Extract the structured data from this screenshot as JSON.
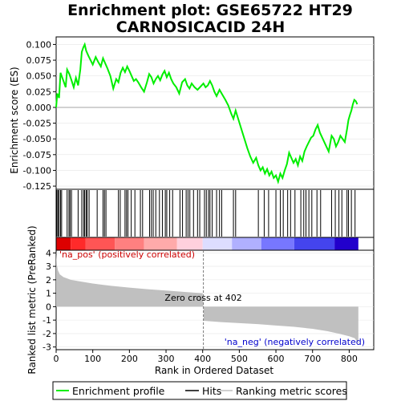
{
  "chart_data": {
    "type": "line",
    "title_line1": "Enrichment plot: GSE65722 HT29",
    "title_line2": "CARNOSICACID 24H",
    "top_panel": {
      "ylabel": "Enrichment score (ES)",
      "ylim": [
        -0.13,
        0.112
      ],
      "yticks": [
        0.1,
        0.075,
        0.05,
        0.025,
        0.0,
        -0.025,
        -0.05,
        -0.075,
        -0.1,
        -0.125
      ],
      "ytick_labels": [
        "0.100",
        "0.075",
        "0.050",
        "0.025",
        "0.000",
        "-0.025",
        "-0.050",
        "-0.075",
        "-0.100",
        "-0.125"
      ],
      "line_color": "#00ee00",
      "x": [
        0,
        3,
        8,
        12,
        15,
        20,
        26,
        30,
        36,
        42,
        48,
        54,
        60,
        66,
        70,
        74,
        78,
        82,
        88,
        94,
        100,
        108,
        115,
        122,
        128,
        134,
        140,
        148,
        156,
        164,
        170,
        176,
        182,
        188,
        194,
        200,
        206,
        212,
        218,
        224,
        232,
        240,
        248,
        254,
        260,
        266,
        272,
        278,
        284,
        290,
        296,
        302,
        308,
        314,
        320,
        328,
        336,
        344,
        352,
        358,
        364,
        370,
        378,
        386,
        394,
        402,
        408,
        414,
        420,
        426,
        432,
        438,
        446,
        454,
        462,
        470,
        478,
        484,
        490,
        498,
        506,
        514,
        522,
        530,
        538,
        546,
        552,
        558,
        564,
        570,
        576,
        582,
        588,
        594,
        600,
        606,
        612,
        618,
        624,
        630,
        636,
        642,
        648,
        654,
        660,
        666,
        672,
        678,
        684,
        690,
        696,
        702,
        708,
        714,
        720,
        728,
        736,
        744,
        752,
        758,
        764,
        770,
        776,
        782,
        788,
        794,
        798,
        802,
        806,
        810,
        814,
        818,
        822
      ],
      "y": [
        0.0,
        0.022,
        0.015,
        0.055,
        0.05,
        0.042,
        0.032,
        0.06,
        0.053,
        0.043,
        0.032,
        0.047,
        0.035,
        0.06,
        0.088,
        0.095,
        0.1,
        0.09,
        0.082,
        0.075,
        0.068,
        0.08,
        0.072,
        0.065,
        0.078,
        0.07,
        0.062,
        0.05,
        0.03,
        0.045,
        0.04,
        0.055,
        0.063,
        0.056,
        0.065,
        0.058,
        0.05,
        0.042,
        0.045,
        0.04,
        0.032,
        0.025,
        0.04,
        0.053,
        0.048,
        0.038,
        0.045,
        0.05,
        0.043,
        0.052,
        0.058,
        0.048,
        0.055,
        0.045,
        0.038,
        0.032,
        0.022,
        0.04,
        0.045,
        0.035,
        0.03,
        0.038,
        0.032,
        0.028,
        0.033,
        0.038,
        0.032,
        0.035,
        0.042,
        0.035,
        0.025,
        0.018,
        0.028,
        0.02,
        0.012,
        0.003,
        -0.01,
        -0.018,
        -0.005,
        -0.02,
        -0.035,
        -0.05,
        -0.065,
        -0.078,
        -0.088,
        -0.08,
        -0.092,
        -0.1,
        -0.095,
        -0.105,
        -0.098,
        -0.108,
        -0.102,
        -0.112,
        -0.108,
        -0.118,
        -0.105,
        -0.112,
        -0.1,
        -0.09,
        -0.072,
        -0.08,
        -0.088,
        -0.082,
        -0.092,
        -0.078,
        -0.085,
        -0.07,
        -0.062,
        -0.055,
        -0.048,
        -0.045,
        -0.035,
        -0.028,
        -0.04,
        -0.05,
        -0.06,
        -0.07,
        -0.045,
        -0.05,
        -0.062,
        -0.055,
        -0.045,
        -0.05,
        -0.055,
        -0.035,
        -0.02,
        -0.012,
        -0.005,
        0.005,
        0.012,
        0.01,
        0.005
      ]
    },
    "hits": {
      "positions": [
        2,
        5,
        8,
        12,
        15,
        30,
        35,
        38,
        42,
        60,
        70,
        75,
        78,
        82,
        85,
        90,
        112,
        128,
        132,
        136,
        170,
        175,
        188,
        192,
        196,
        205,
        215,
        230,
        236,
        255,
        260,
        265,
        272,
        282,
        290,
        298,
        302,
        310,
        318,
        338,
        345,
        355,
        360,
        365,
        375,
        386,
        392,
        405,
        410,
        416,
        420,
        426,
        438,
        446,
        452,
        484,
        490,
        552,
        568,
        580,
        600,
        612,
        620,
        632,
        640,
        652,
        668,
        676,
        682,
        690,
        698,
        712,
        722,
        752,
        762,
        772,
        780,
        794,
        798,
        806,
        816
      ]
    },
    "rank_colorbar": {
      "colors_left_to_right": [
        "#dd0000",
        "#ff2a2a",
        "#ff5555",
        "#ff8080",
        "#ffaaaa",
        "#ffd0dd",
        "#ddddff",
        "#b0b0ff",
        "#7777ff",
        "#4444ee",
        "#2200cc"
      ],
      "bounds": [
        0,
        40,
        80,
        160,
        240,
        330,
        400,
        480,
        560,
        650,
        760,
        825
      ]
    },
    "bottom_panel": {
      "ylabel": "Ranked list metric (PreRanked)",
      "ylim": [
        -3.2,
        4.2
      ],
      "yticks": [
        4,
        3,
        2,
        1,
        0,
        -1,
        -2,
        -3
      ],
      "ytick_labels": [
        "4",
        "3",
        "2",
        "1",
        "0",
        "-1",
        "-2",
        "-3"
      ],
      "fill_color": "#c0c0c0",
      "zero_cross": 402,
      "zero_cross_text": "Zero cross at 402",
      "pos_label": "'na_pos' (positively correlated)",
      "neg_label": "'na_neg' (negatively correlated)",
      "metric_x": [
        0,
        2,
        5,
        10,
        20,
        40,
        60,
        100,
        150,
        200,
        250,
        300,
        350,
        400,
        401,
        402,
        403,
        450,
        500,
        550,
        600,
        650,
        700,
        740,
        770,
        800,
        815,
        822,
        825
      ],
      "metric_y": [
        4.0,
        3.1,
        2.7,
        2.4,
        2.2,
        2.0,
        1.9,
        1.72,
        1.55,
        1.42,
        1.3,
        1.2,
        1.1,
        1.0,
        0.3,
        0.0,
        -1.05,
        -1.15,
        -1.22,
        -1.3,
        -1.4,
        -1.5,
        -1.65,
        -1.82,
        -2.0,
        -2.2,
        -2.35,
        -2.6,
        -2.8
      ]
    },
    "xaxis": {
      "xlabel": "Rank in Ordered Dataset",
      "xlim": [
        0,
        867
      ],
      "xticks": [
        0,
        100,
        200,
        300,
        400,
        500,
        600,
        700,
        800
      ],
      "xtick_labels": [
        "0",
        "100",
        "200",
        "300",
        "400",
        "500",
        "600",
        "700",
        "800"
      ]
    },
    "legend": {
      "items": [
        {
          "label": "Enrichment profile",
          "color": "#00ee00"
        },
        {
          "label": "Hits",
          "color": "#000000"
        },
        {
          "label": "Ranking metric scores",
          "color": "#c0c0c0"
        }
      ]
    }
  }
}
